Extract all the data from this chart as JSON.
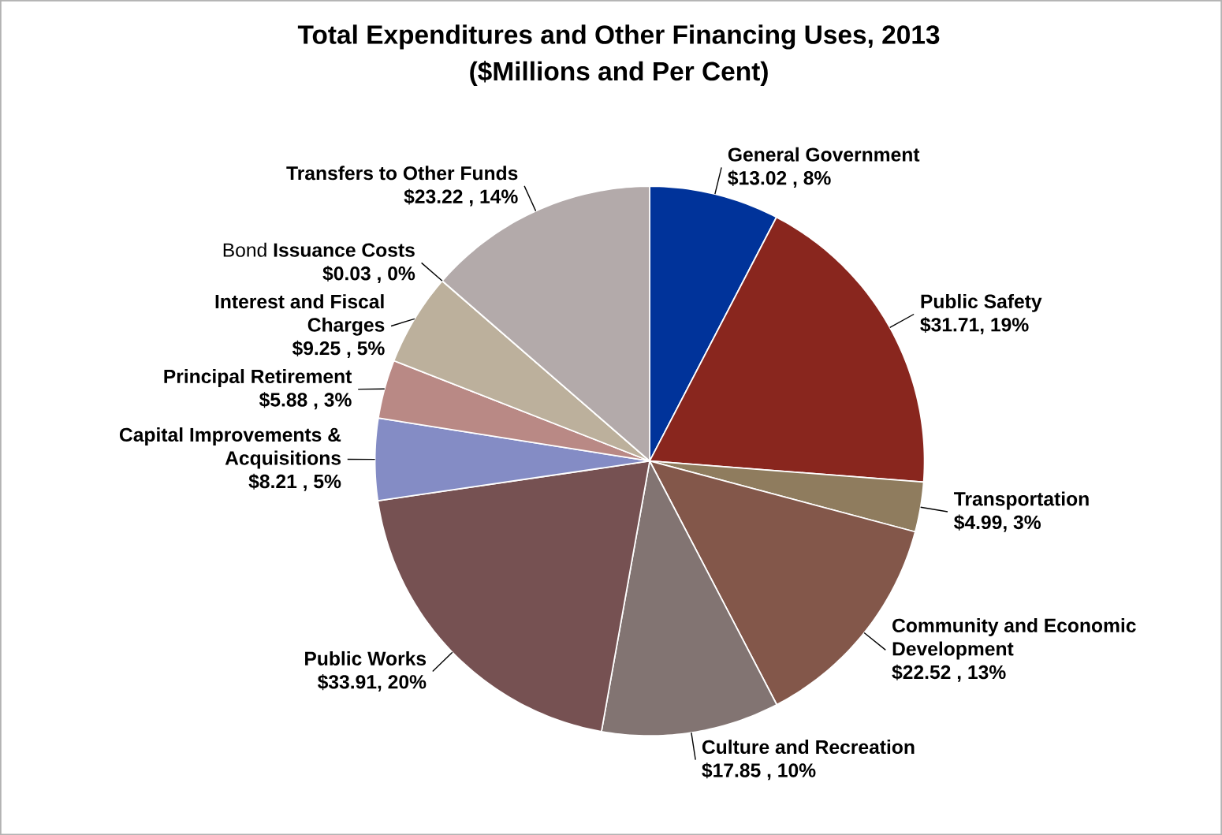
{
  "chart_data": {
    "type": "pie",
    "title": "Total Expenditures and Other Financing Uses, 2013",
    "subtitle": "($Millions and Per Cent)",
    "categories": [
      "General Government",
      "Public Safety",
      "Transportation",
      "Community and Economic Development",
      "Culture and Recreation",
      "Public Works",
      "Capital Improvements & Acquisitions",
      "Principal Retirement",
      "Interest and Fiscal Charges",
      "Bond **Issuance Costs**",
      "Transfers to Other Funds"
    ],
    "values": [
      13.02,
      31.71,
      4.99,
      22.52,
      17.85,
      33.91,
      8.21,
      5.88,
      9.25,
      0.03,
      23.22
    ],
    "colors": [
      "#00339a",
      "#89261e",
      "#8f7c5e",
      "#83574a",
      "#827472",
      "#765152",
      "#848cc5",
      "#b98985",
      "#bcb09c",
      "#c4a88a",
      "#b3aaaa"
    ],
    "value_labels": [
      "$13.02 , 8%",
      "$31.71, 19%",
      "$4.99, 3%",
      "$22.52 , 13%",
      "$17.85 , 10%",
      "$33.91, 20%",
      "$8.21 , 5%",
      "$5.88 , 3%",
      "$9.25 , 5%",
      "$0.03 , 0%",
      "$23.22 , 14%"
    ]
  }
}
